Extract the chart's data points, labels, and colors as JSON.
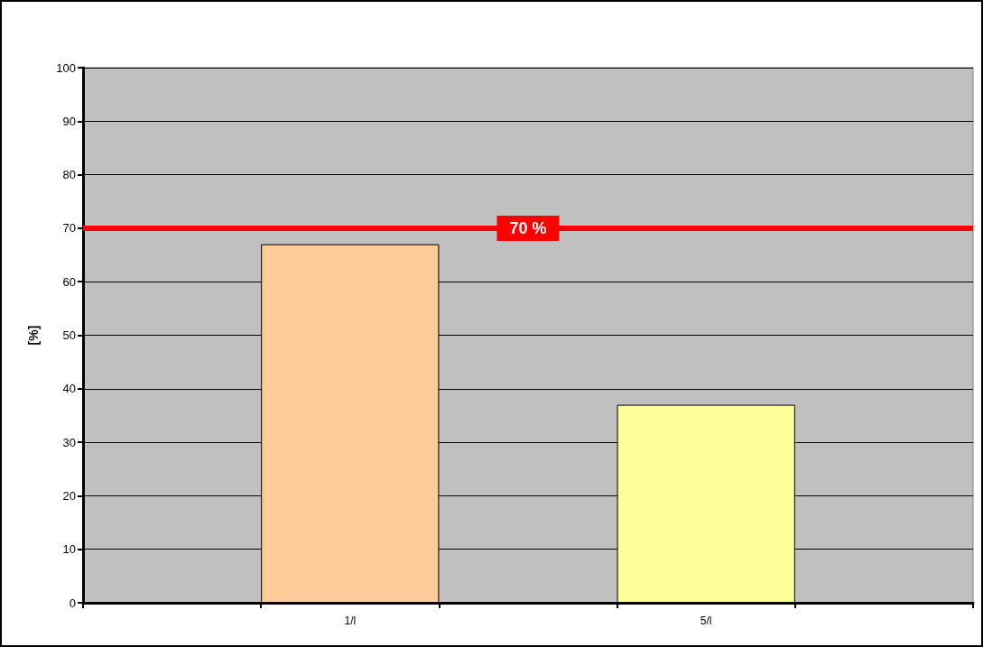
{
  "chart_data": {
    "type": "bar",
    "ylabel": "[%]",
    "categories": [
      null,
      "1/l",
      null,
      "5/l",
      null
    ],
    "values": [
      null,
      67,
      null,
      37,
      null
    ],
    "colors": [
      "#ffcc99",
      "#ffcc99",
      "#ffff99",
      "#ffff99",
      "#ffff99"
    ],
    "ylim": [
      0,
      100
    ],
    "yticks": [
      0,
      10,
      20,
      30,
      40,
      50,
      60,
      70,
      80,
      90,
      100
    ],
    "grid": "y",
    "ref_lines": [
      {
        "axis": "y",
        "value": 70,
        "label": "70 %",
        "color": "#ff0000"
      }
    ]
  }
}
